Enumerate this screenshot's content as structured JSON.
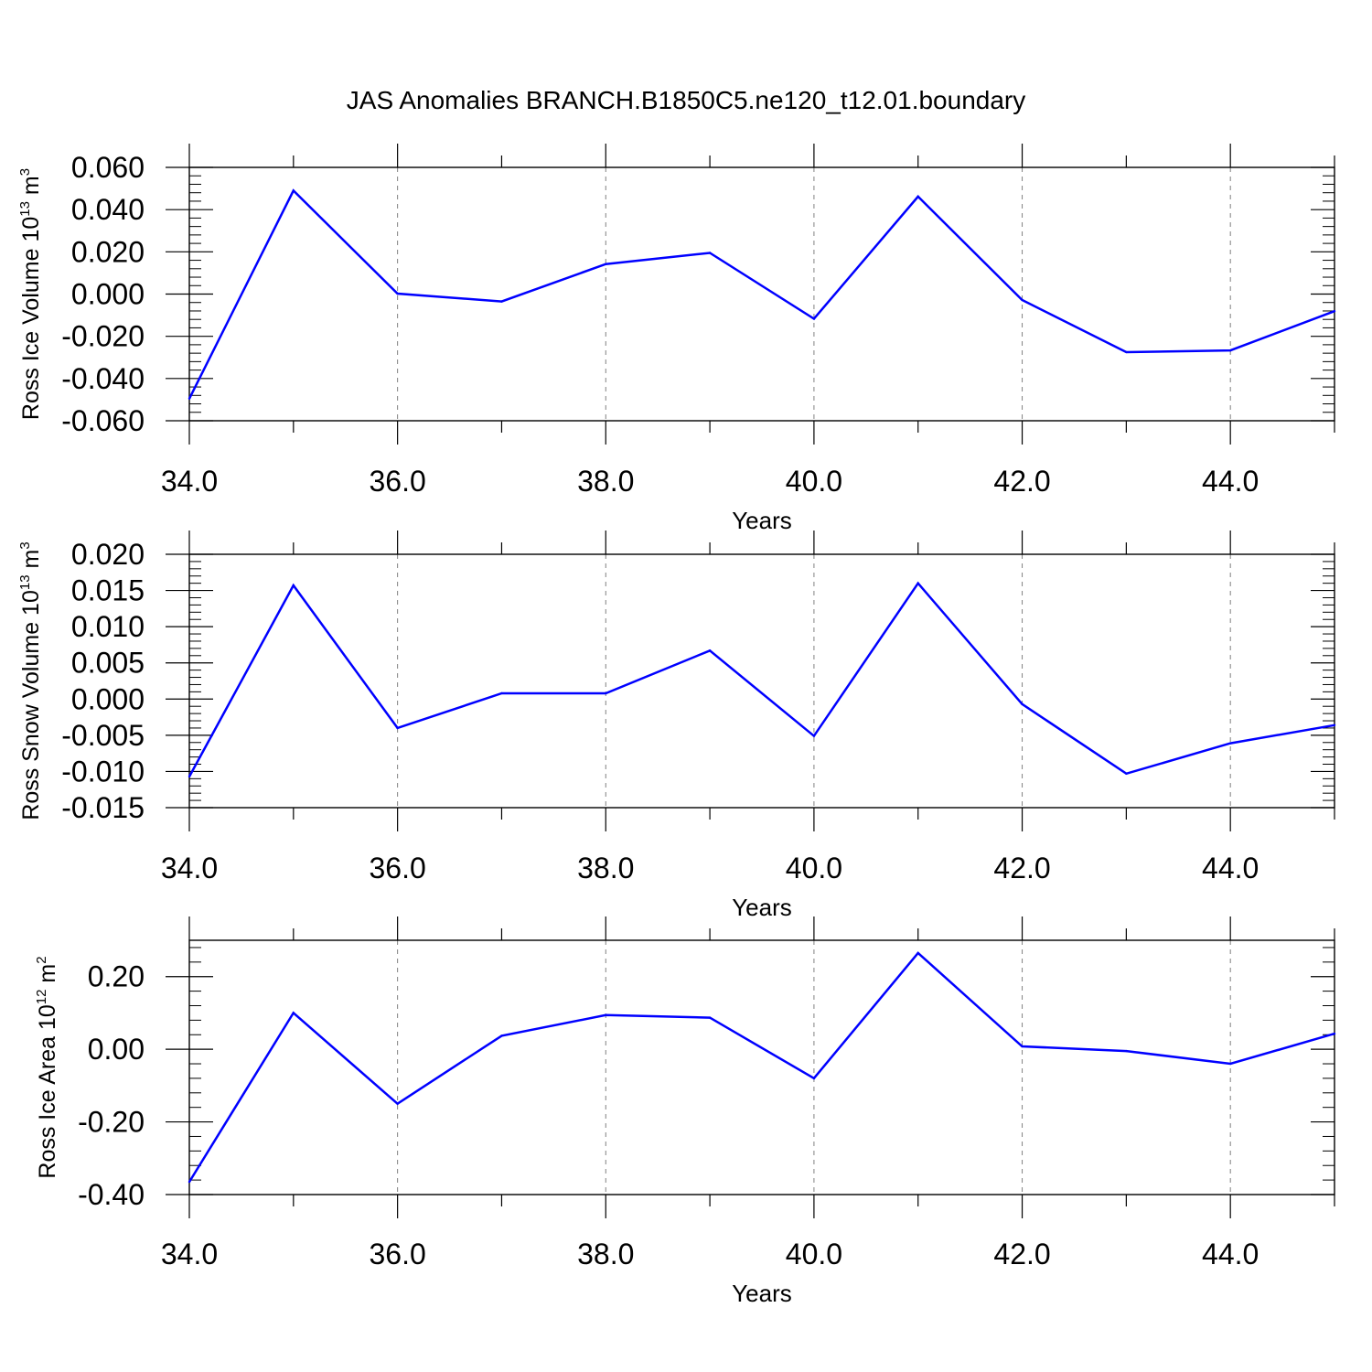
{
  "title": "JAS Anomalies BRANCH.B1850C5.ne120_t12.01.boundary",
  "colors": {
    "line": "#0000ff",
    "axis": "#000000",
    "grid": "#808080"
  },
  "chart_data": [
    {
      "type": "line",
      "ylabel": {
        "text": "Ross Ice Volume 10",
        "sup": "13",
        "unit": " m",
        "unit_sup": "3"
      },
      "xlabel": "Years",
      "xlim": [
        34,
        45
      ],
      "ylim": [
        -0.06,
        0.06
      ],
      "x_ticks": [
        "34.0",
        "36.0",
        "38.0",
        "40.0",
        "42.0",
        "44.0"
      ],
      "y_ticks": [
        "0.060",
        "0.040",
        "0.020",
        "0.000",
        "-0.020",
        "-0.040",
        "-0.060"
      ],
      "y_tick_values": [
        0.06,
        0.04,
        0.02,
        0.0,
        -0.02,
        -0.04,
        -0.06
      ],
      "grid": "vertical dashed at major x ticks",
      "series": [
        {
          "x": [
            34,
            35,
            36,
            37,
            38,
            39,
            40,
            41,
            42,
            43,
            44,
            45
          ],
          "values": [
            -0.0495,
            0.049,
            0.0002,
            -0.0035,
            0.0142,
            0.0195,
            -0.0117,
            0.0462,
            -0.0028,
            -0.0275,
            -0.0267,
            -0.0081
          ]
        }
      ]
    },
    {
      "type": "line",
      "ylabel": {
        "text": "Ross Snow Volume 10",
        "sup": "13",
        "unit": " m",
        "unit_sup": "3"
      },
      "xlabel": "Years",
      "xlim": [
        34,
        45
      ],
      "ylim": [
        -0.015,
        0.02
      ],
      "x_ticks": [
        "34.0",
        "36.0",
        "38.0",
        "40.0",
        "42.0",
        "44.0"
      ],
      "y_ticks": [
        "0.020",
        "0.015",
        "0.010",
        "0.005",
        "0.000",
        "-0.005",
        "-0.010",
        "-0.015"
      ],
      "y_tick_values": [
        0.02,
        0.015,
        0.01,
        0.005,
        0.0,
        -0.005,
        -0.01,
        -0.015
      ],
      "grid": "vertical dashed at major x ticks",
      "series": [
        {
          "x": [
            34,
            35,
            36,
            37,
            38,
            39,
            40,
            41,
            42,
            43,
            44,
            45
          ],
          "values": [
            -0.0107,
            0.0157,
            -0.004,
            0.0008,
            0.0008,
            0.0067,
            -0.0051,
            0.016,
            -0.0007,
            -0.0103,
            -0.0061,
            -0.0036
          ]
        }
      ]
    },
    {
      "type": "line",
      "ylabel": {
        "text": "Ross Ice Area 10",
        "sup": "12",
        "unit": " m",
        "unit_sup": "2"
      },
      "xlabel": "Years",
      "xlim": [
        34,
        45
      ],
      "ylim": [
        -0.4,
        0.3
      ],
      "x_ticks": [
        "34.0",
        "36.0",
        "38.0",
        "40.0",
        "42.0",
        "44.0"
      ],
      "y_ticks": [
        "0.20",
        "0.00",
        "-0.20",
        "-0.40"
      ],
      "y_tick_values": [
        0.2,
        0.0,
        -0.2,
        -0.4
      ],
      "grid": "vertical dashed at major x ticks",
      "series": [
        {
          "x": [
            34,
            35,
            36,
            37,
            38,
            39,
            40,
            41,
            42,
            43,
            44,
            45
          ],
          "values": [
            -0.365,
            0.1,
            -0.15,
            0.037,
            0.094,
            0.087,
            -0.08,
            0.265,
            0.008,
            -0.005,
            -0.04,
            0.043
          ]
        }
      ]
    }
  ]
}
